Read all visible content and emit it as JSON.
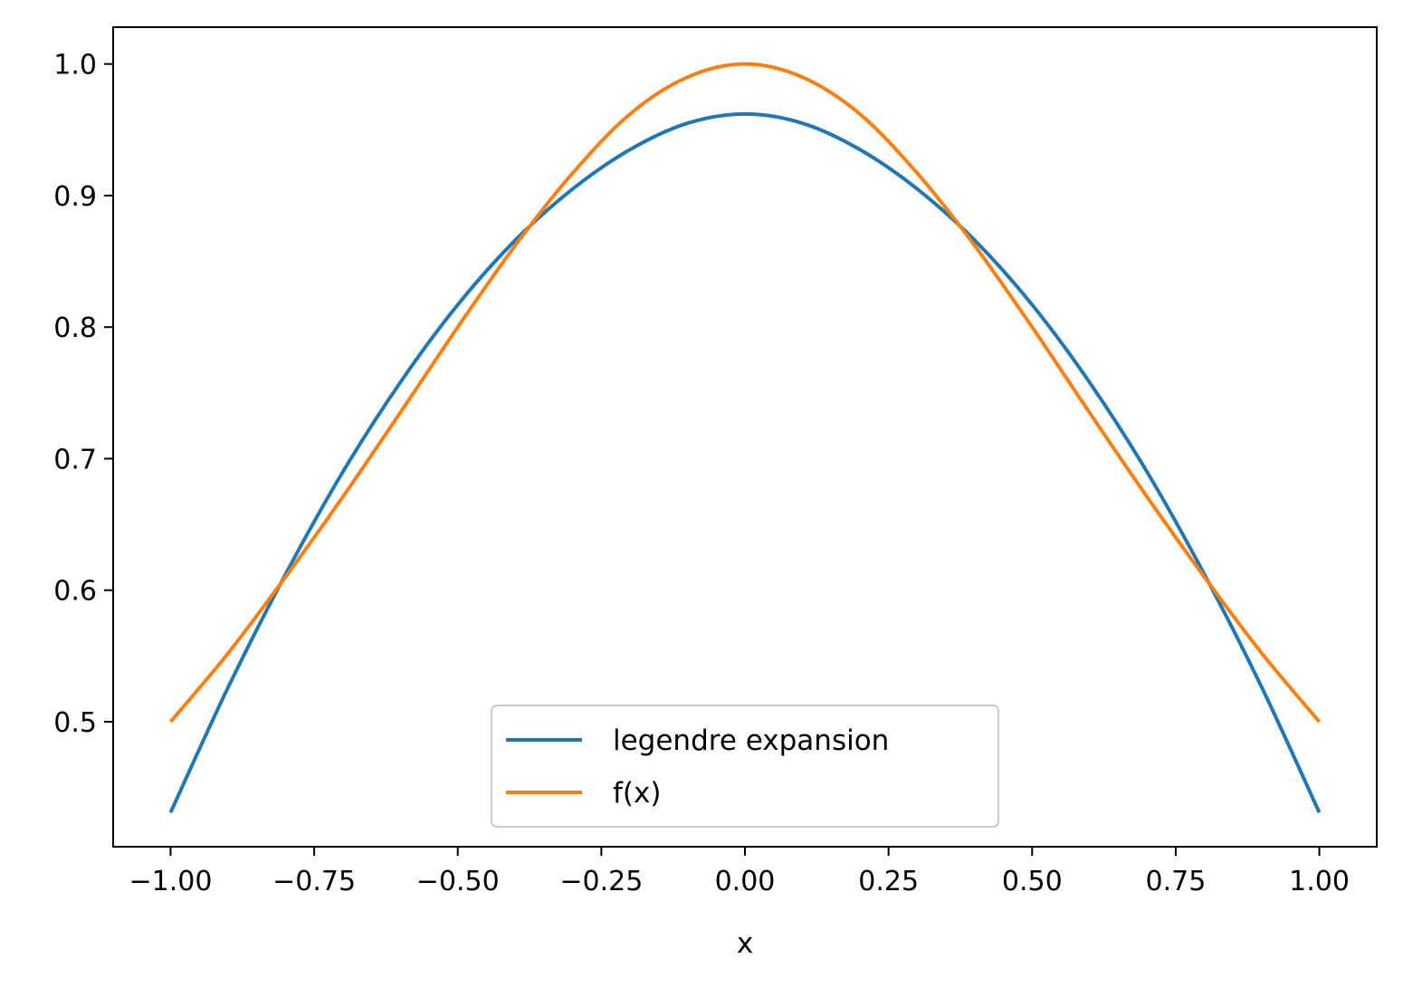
{
  "chart_data": {
    "type": "line",
    "title": "",
    "xlabel": "x",
    "ylabel": "",
    "xlim": [
      -1.1,
      1.1
    ],
    "ylim": [
      0.405,
      1.028
    ],
    "xticks": [
      -1.0,
      -0.75,
      -0.5,
      -0.25,
      0.0,
      0.25,
      0.5,
      0.75,
      1.0
    ],
    "xtick_labels": [
      "−1.00",
      "−0.75",
      "−0.50",
      "−0.25",
      "0.00",
      "0.25",
      "0.50",
      "0.75",
      "1.00"
    ],
    "yticks": [
      0.5,
      0.6,
      0.7,
      0.8,
      0.9,
      1.0
    ],
    "ytick_labels": [
      "0.5",
      "0.6",
      "0.7",
      "0.8",
      "0.9",
      "1.0"
    ],
    "grid": false,
    "legend_position": "lower center",
    "series": [
      {
        "name": "legendre expansion",
        "color": "#1f77b4",
        "x": [
          -1.0,
          -0.9,
          -0.8,
          -0.7,
          -0.6,
          -0.5,
          -0.4,
          -0.3,
          -0.2,
          -0.1,
          0.0,
          0.1,
          0.2,
          0.3,
          0.4,
          0.5,
          0.6,
          0.7,
          0.8,
          0.9,
          1.0
        ],
        "y": [
          0.431,
          0.526,
          0.612,
          0.69,
          0.758,
          0.817,
          0.866,
          0.905,
          0.935,
          0.955,
          0.962,
          0.955,
          0.935,
          0.905,
          0.866,
          0.817,
          0.758,
          0.69,
          0.612,
          0.526,
          0.431
        ]
      },
      {
        "name": "f(x)",
        "color": "#ff7f0e",
        "x": [
          -1.0,
          -0.9,
          -0.8,
          -0.7,
          -0.6,
          -0.5,
          -0.4,
          -0.3,
          -0.2,
          -0.1,
          0.0,
          0.1,
          0.2,
          0.3,
          0.4,
          0.5,
          0.6,
          0.7,
          0.8,
          0.9,
          1.0
        ],
        "y": [
          0.5,
          0.552,
          0.61,
          0.671,
          0.735,
          0.8,
          0.862,
          0.917,
          0.962,
          0.99,
          1.0,
          0.99,
          0.962,
          0.917,
          0.862,
          0.8,
          0.735,
          0.671,
          0.61,
          0.552,
          0.5
        ]
      }
    ]
  }
}
